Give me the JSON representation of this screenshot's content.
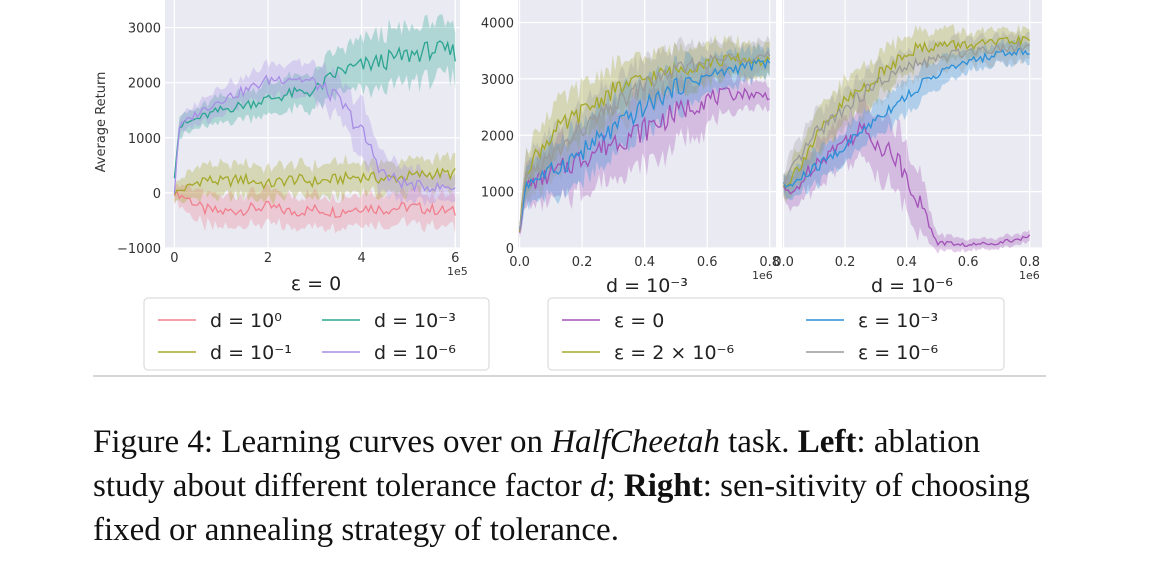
{
  "figure": {
    "caption_prefix": "Figure 4: Learning curves over on ",
    "caption_task": "HalfCheetah",
    "caption_mid1": " task. ",
    "caption_left": "Left",
    "caption_mid2": ": ablation study about different tolerance factor ",
    "caption_var": "d",
    "caption_mid3": "; ",
    "caption_right": "Right",
    "caption_end": ": sen-sitivity of choosing fixed or annealing strategy of tolerance."
  },
  "colors": {
    "pink": "#f07f8e",
    "olive": "#a5a92a",
    "teal": "#2ba592",
    "lavender": "#a78ee6",
    "purple": "#a352b8",
    "blue": "#2c8fd8",
    "gray": "#9a9a9a",
    "plot_bg": "#eaeaf2",
    "grid": "#ffffff"
  },
  "chart_data": [
    {
      "type": "line",
      "panel": "left",
      "xlabel": "ε = 0",
      "ylabel": "Average Return",
      "x_multiplier": "1e5",
      "xlim": [
        -0.2,
        6.1
      ],
      "ylim": [
        -1000,
        3500
      ],
      "xticks": [
        0,
        2,
        4,
        6
      ],
      "xtick_labels": [
        "0",
        "2",
        "4",
        "6"
      ],
      "yticks": [
        -1000,
        0,
        1000,
        2000,
        3000
      ],
      "ytick_labels": [
        "−1000",
        "0",
        "1000",
        "2000",
        "3000"
      ],
      "grid": true,
      "series": [
        {
          "name": "d = 10^0",
          "color_key": "pink",
          "x": [
            0,
            0.3,
            0.6,
            1,
            1.5,
            2,
            2.5,
            3,
            3.5,
            4,
            4.5,
            5,
            5.5,
            6
          ],
          "values": [
            0,
            -100,
            -300,
            -350,
            -300,
            -250,
            -350,
            -300,
            -350,
            -250,
            -300,
            -250,
            -300,
            -350
          ],
          "band": [
            150,
            250,
            300,
            300,
            300,
            300,
            300,
            300,
            300,
            300,
            300,
            300,
            300,
            300
          ]
        },
        {
          "name": "d = 10^-1",
          "color_key": "olive",
          "x": [
            0,
            0.3,
            0.6,
            1,
            1.5,
            2,
            2.5,
            3,
            3.5,
            4,
            4.5,
            5,
            5.5,
            6
          ],
          "values": [
            0,
            100,
            250,
            200,
            250,
            150,
            250,
            200,
            250,
            300,
            250,
            300,
            350,
            350
          ],
          "band": [
            150,
            250,
            300,
            300,
            300,
            300,
            300,
            300,
            300,
            300,
            300,
            300,
            300,
            300
          ]
        },
        {
          "name": "d = 10^-3",
          "color_key": "teal",
          "x": [
            0,
            0.1,
            0.5,
            1,
            1.5,
            2,
            2.5,
            3,
            3.5,
            4,
            4.5,
            5,
            5.5,
            6
          ],
          "values": [
            300,
            1200,
            1350,
            1500,
            1600,
            1700,
            1800,
            1850,
            2200,
            2300,
            2400,
            2500,
            2600,
            2550
          ],
          "band": [
            100,
            200,
            200,
            250,
            250,
            300,
            300,
            350,
            400,
            450,
            500,
            500,
            500,
            500
          ]
        },
        {
          "name": "d = 10^-6",
          "color_key": "lavender",
          "x": [
            0,
            0.1,
            0.5,
            1,
            1.5,
            2,
            2.5,
            3,
            3.5,
            4,
            4.5,
            5,
            5.5,
            6
          ],
          "values": [
            0,
            1200,
            1450,
            1700,
            1850,
            2050,
            2100,
            2000,
            1700,
            1100,
            300,
            150,
            100,
            100
          ],
          "band": [
            100,
            150,
            200,
            250,
            250,
            300,
            300,
            350,
            400,
            500,
            400,
            300,
            250,
            250
          ]
        }
      ],
      "legend": [
        {
          "label": "d = 10⁰",
          "color_key": "pink"
        },
        {
          "label": "d = 10⁻³",
          "color_key": "teal"
        },
        {
          "label": "d = 10⁻¹",
          "color_key": "olive"
        },
        {
          "label": "d = 10⁻⁶",
          "color_key": "lavender"
        }
      ]
    },
    {
      "type": "line",
      "panel": "middle",
      "xlabel": "d = 10⁻³",
      "x_multiplier": "1e6",
      "xlim": [
        -0.005,
        0.82
      ],
      "ylim": [
        0,
        4400
      ],
      "xticks": [
        0.0,
        0.2,
        0.4,
        0.6,
        0.8
      ],
      "xtick_labels": [
        "0.0",
        "0.2",
        "0.4",
        "0.6",
        "0.8"
      ],
      "yticks": [
        0,
        1000,
        2000,
        3000,
        4000
      ],
      "ytick_labels": [
        "0",
        "1000",
        "2000",
        "3000",
        "4000"
      ],
      "grid": true,
      "series": [
        {
          "name": "ε = 0",
          "color_key": "purple",
          "x": [
            0,
            0.02,
            0.1,
            0.2,
            0.3,
            0.4,
            0.5,
            0.6,
            0.7,
            0.8
          ],
          "values": [
            300,
            1100,
            1300,
            1600,
            1900,
            2100,
            2400,
            2650,
            2750,
            2700
          ],
          "band": [
            100,
            350,
            500,
            600,
            650,
            650,
            600,
            500,
            300,
            200
          ]
        },
        {
          "name": "ε = 2 × 10^-6",
          "color_key": "olive",
          "x": [
            0,
            0.02,
            0.1,
            0.2,
            0.3,
            0.4,
            0.5,
            0.6,
            0.7,
            0.8
          ],
          "values": [
            300,
            1400,
            2000,
            2400,
            2800,
            3000,
            3150,
            3300,
            3350,
            3300
          ],
          "band": [
            100,
            400,
            500,
            500,
            450,
            400,
            400,
            350,
            300,
            300
          ]
        },
        {
          "name": "ε = 10^-3",
          "color_key": "blue",
          "x": [
            0,
            0.02,
            0.1,
            0.2,
            0.3,
            0.4,
            0.5,
            0.6,
            0.7,
            0.8
          ],
          "values": [
            300,
            1150,
            1350,
            1700,
            2100,
            2500,
            2850,
            3050,
            3200,
            3300
          ],
          "band": [
            100,
            350,
            450,
            550,
            550,
            500,
            450,
            350,
            300,
            250
          ]
        },
        {
          "name": "ε = 10^-6",
          "color_key": "gray",
          "x": [
            0,
            0.02,
            0.1,
            0.2,
            0.3,
            0.4,
            0.5,
            0.6,
            0.7,
            0.8
          ],
          "values": [
            300,
            1250,
            1600,
            2100,
            2500,
            2900,
            3150,
            3300,
            3400,
            3400
          ],
          "band": [
            100,
            400,
            450,
            450,
            450,
            450,
            400,
            350,
            300,
            300
          ]
        }
      ],
      "legend": [
        {
          "label": "ε = 0",
          "color_key": "purple"
        },
        {
          "label": "ε = 10⁻³",
          "color_key": "blue"
        },
        {
          "label": "ε = 2 × 10⁻⁶",
          "color_key": "olive"
        },
        {
          "label": "ε = 10⁻⁶",
          "color_key": "gray"
        }
      ]
    },
    {
      "type": "line",
      "panel": "right",
      "xlabel": "d = 10⁻⁶",
      "x_multiplier": "1e6",
      "xlim": [
        -0.005,
        0.84
      ],
      "ylim": [
        0,
        4400
      ],
      "xticks": [
        0.0,
        0.2,
        0.4,
        0.6,
        0.8
      ],
      "xtick_labels": [
        "0.0",
        "0.2",
        "0.4",
        "0.6",
        "0.8"
      ],
      "grid": true,
      "series": [
        {
          "name": "ε = 0",
          "color_key": "purple",
          "x": [
            0,
            0.02,
            0.1,
            0.2,
            0.25,
            0.3,
            0.35,
            0.4,
            0.45,
            0.5,
            0.6,
            0.7,
            0.8
          ],
          "values": [
            1100,
            900,
            1500,
            1900,
            2100,
            1900,
            1700,
            1300,
            700,
            100,
            50,
            100,
            200
          ],
          "band": [
            200,
            300,
            400,
            450,
            500,
            550,
            600,
            600,
            500,
            150,
            100,
            100,
            100
          ]
        },
        {
          "name": "ε = 2 × 10^-6",
          "color_key": "olive",
          "x": [
            0,
            0.02,
            0.1,
            0.2,
            0.3,
            0.4,
            0.5,
            0.6,
            0.7,
            0.8
          ],
          "values": [
            1100,
            1200,
            1900,
            2600,
            3000,
            3500,
            3600,
            3600,
            3650,
            3700
          ],
          "band": [
            200,
            300,
            400,
            400,
            400,
            350,
            300,
            250,
            200,
            200
          ]
        },
        {
          "name": "ε = 10^-3",
          "color_key": "blue",
          "x": [
            0,
            0.02,
            0.1,
            0.2,
            0.3,
            0.4,
            0.5,
            0.6,
            0.7,
            0.8
          ],
          "values": [
            1100,
            1100,
            1400,
            1800,
            2300,
            2700,
            3100,
            3300,
            3450,
            3500
          ],
          "band": [
            200,
            250,
            300,
            300,
            300,
            300,
            250,
            200,
            200,
            200
          ]
        },
        {
          "name": "ε = 10^-6",
          "color_key": "gray",
          "x": [
            0,
            0.02,
            0.1,
            0.2,
            0.3,
            0.4,
            0.5,
            0.6,
            0.7,
            0.8
          ],
          "values": [
            1100,
            1300,
            2000,
            2500,
            2900,
            3200,
            3350,
            3500,
            3550,
            3600
          ],
          "band": [
            200,
            300,
            350,
            350,
            350,
            300,
            300,
            250,
            250,
            250
          ]
        }
      ]
    }
  ]
}
